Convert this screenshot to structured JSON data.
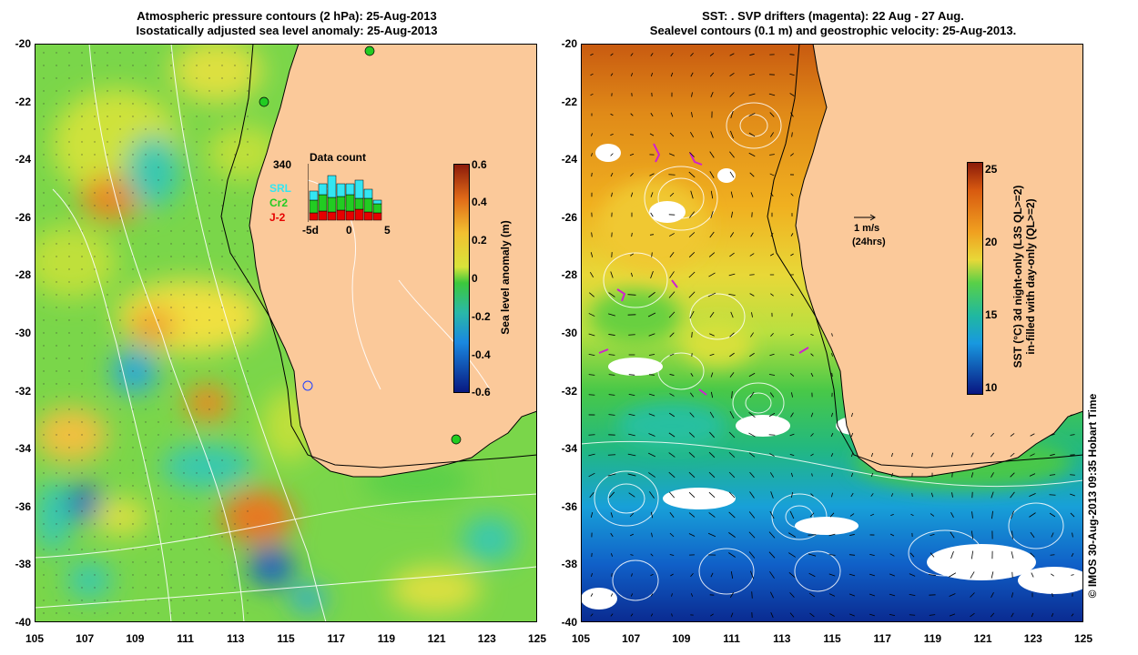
{
  "left": {
    "title_line1": "Atmospheric pressure contours (2 hPa): 25-Aug-2013",
    "title_line2": "Isostatically adjusted sea level anomaly: 25-Aug-2013",
    "colorbar": {
      "label": "Sea level anomaly (m)",
      "ticks": [
        "0.6",
        "0.4",
        "0.2",
        "0",
        "-0.2",
        "-0.4",
        "-0.6"
      ],
      "range": [
        -0.6,
        0.6
      ]
    },
    "data_count": {
      "title": "Data count",
      "max_label": "340",
      "legend": [
        "SRL",
        "Cr2",
        "J-2"
      ],
      "xticks": [
        "-5d",
        "0",
        "5"
      ],
      "colors": {
        "SRL": "#33e6f2",
        "Cr2": "#22cc22",
        "J-2": "#e60000"
      }
    }
  },
  "right": {
    "title_line1": "SST: . SVP drifters (magenta): 22 Aug - 27 Aug.",
    "title_line2": "Sealevel contours (0.1 m) and geostrophic velocity: 25-Aug-2013.",
    "colorbar": {
      "label_line1": "SST (°C)  3d night-only (L3S QL>=2)",
      "label_line2": "in-filled with day-only (QL>=2)",
      "ticks": [
        "25",
        "20",
        "15",
        "10"
      ],
      "range": [
        10,
        26
      ]
    },
    "scale": {
      "label1": "1 m/s",
      "label2": "(24hrs)"
    }
  },
  "axes": {
    "x_ticks": [
      "105",
      "107",
      "109",
      "111",
      "113",
      "115",
      "117",
      "119",
      "121",
      "123",
      "125"
    ],
    "y_ticks": [
      "-20",
      "-22",
      "-24",
      "-26",
      "-28",
      "-30",
      "-32",
      "-34",
      "-36",
      "-38",
      "-40"
    ],
    "lon_range": [
      105,
      125
    ],
    "lat_range": [
      -20,
      -40
    ]
  },
  "credit": "© IMOS 30-Aug-2013 09:35 Hobart Time",
  "colors": {
    "land": "#fbc99a",
    "coast": "#000000",
    "contour": "#ffffff"
  }
}
